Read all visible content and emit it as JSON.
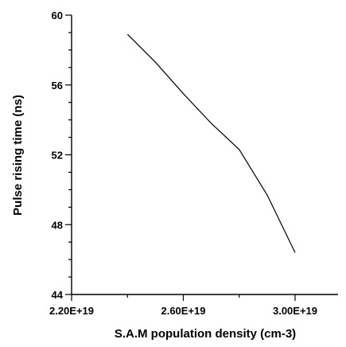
{
  "chart_data": {
    "type": "line",
    "xlabel": "S.A.M population density (cm-3)",
    "ylabel": "Pulse rising time (ns)",
    "xlim": [
      2.2e+19,
      3.2e+19
    ],
    "ylim": [
      44,
      60
    ],
    "x_ticks": [
      {
        "value": 2.2e+19,
        "label": "2.20E+19"
      },
      {
        "value": 2.6e+19,
        "label": "2.60E+19"
      },
      {
        "value": 3e+19,
        "label": "3.00E+19"
      }
    ],
    "y_ticks": [
      {
        "value": 44,
        "label": "44"
      },
      {
        "value": 48,
        "label": "48"
      },
      {
        "value": 52,
        "label": "52"
      },
      {
        "value": 56,
        "label": "56"
      },
      {
        "value": 60,
        "label": "60"
      }
    ],
    "x_minor_ticks": [
      2.4e+19,
      2.8e+19
    ],
    "y_minor_ticks": [
      45,
      46,
      47,
      49,
      50,
      51,
      53,
      54,
      55,
      57,
      58,
      59
    ],
    "series": [
      {
        "x": [
          2.4e+19,
          2.5e+19,
          2.6e+19,
          2.7e+19,
          2.8e+19,
          2.9e+19,
          3e+19
        ],
        "y": [
          58.9,
          57.3,
          55.5,
          53.8,
          52.3,
          49.7,
          46.4
        ]
      }
    ],
    "grid": false,
    "legend": "none"
  }
}
